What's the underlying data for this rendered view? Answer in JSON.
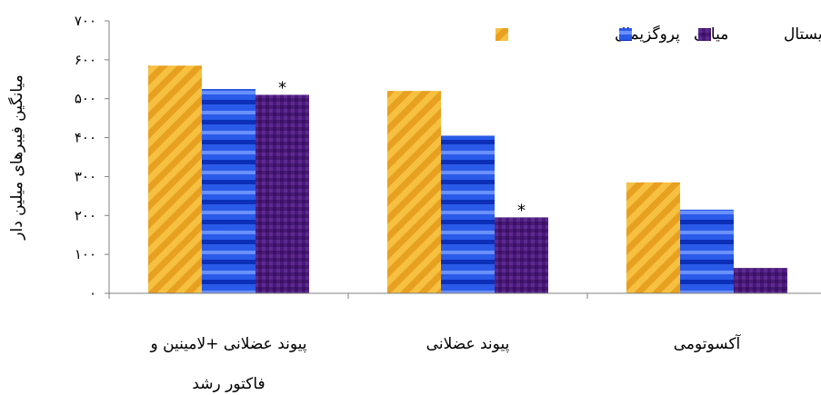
{
  "chart_data": {
    "type": "bar",
    "ylabel": "میانگین فیبرهای میلین دار",
    "ylim": [
      0,
      700
    ],
    "yticks": [
      {
        "value": 0,
        "label": "۰"
      },
      {
        "value": 100,
        "label": "۱۰۰"
      },
      {
        "value": 200,
        "label": "۲۰۰"
      },
      {
        "value": 300,
        "label": "۳۰۰"
      },
      {
        "value": 400,
        "label": "۴۰۰"
      },
      {
        "value": 500,
        "label": "۵۰۰"
      },
      {
        "value": 600,
        "label": "۶۰۰"
      },
      {
        "value": 700,
        "label": "۷۰۰"
      }
    ],
    "categories": [
      {
        "line1": "پیوند عضلانی +لامینین و",
        "line2": "فاکتور رشد"
      },
      {
        "line1": "پیوند عضلانی",
        "line2": ""
      },
      {
        "line1": "آکسوتومی",
        "line2": ""
      }
    ],
    "series": [
      {
        "name": "پروگزیمال",
        "values": [
          585,
          520,
          285
        ],
        "color": "#e8a020"
      },
      {
        "name": "میانی",
        "values": [
          525,
          405,
          215
        ],
        "color": "#1a46d8"
      },
      {
        "name": "دیستال",
        "values": [
          510,
          195,
          65
        ],
        "color": "#4a1a78"
      }
    ],
    "annotations": [
      {
        "series": 2,
        "category": 0,
        "text": "*"
      },
      {
        "series": 2,
        "category": 1,
        "text": "*"
      }
    ],
    "legend_position": "top-right",
    "grid": false
  }
}
